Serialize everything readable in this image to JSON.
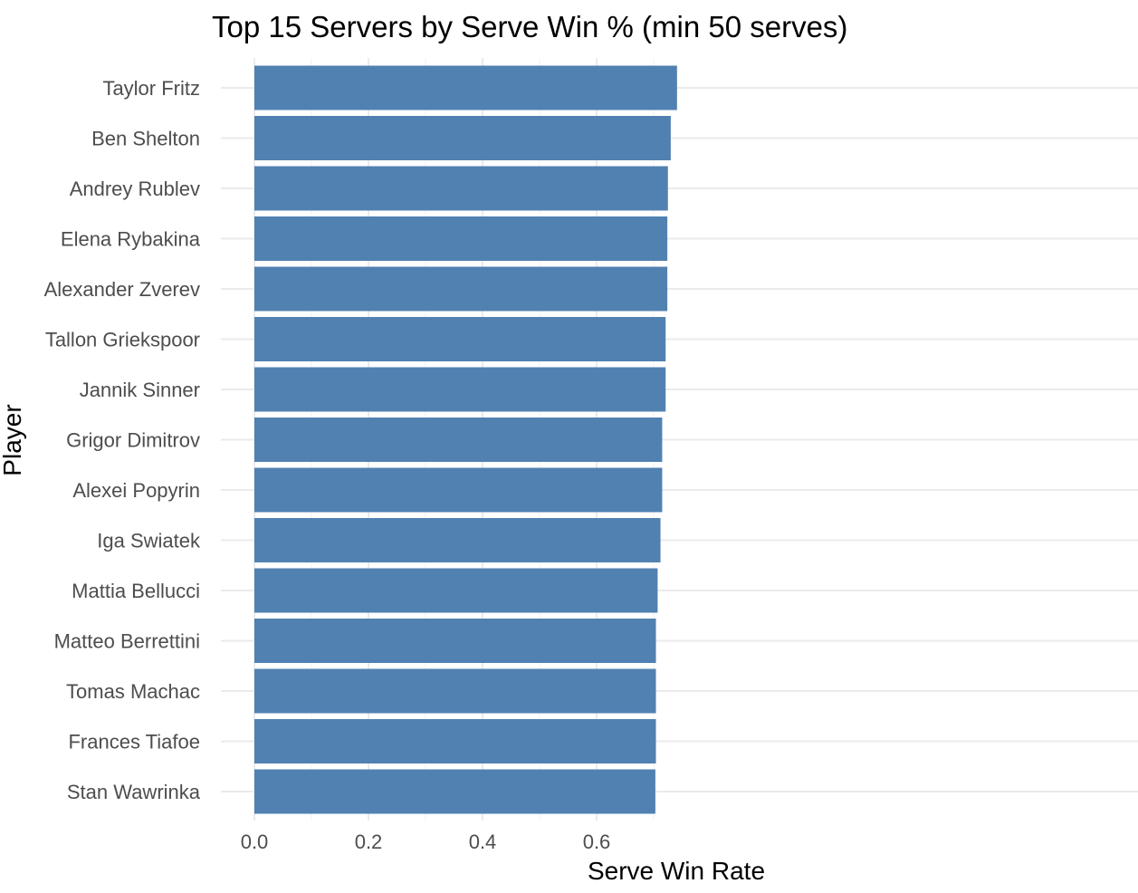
{
  "chart_data": {
    "type": "bar",
    "orientation": "horizontal",
    "title": "Top 15 Servers by Serve Win % (min 50 serves)",
    "xlabel": "Serve Win Rate",
    "ylabel": "Player",
    "xlim": [
      0,
      0.74
    ],
    "x_ticks": [
      0.0,
      0.2,
      0.4,
      0.6
    ],
    "x_tick_labels": [
      "0.0",
      "0.2",
      "0.4",
      "0.6"
    ],
    "grid": true,
    "bar_color": "#5181b1",
    "categories": [
      "Taylor Fritz",
      "Ben Shelton",
      "Andrey Rublev",
      "Elena Rybakina",
      "Alexander Zverev",
      "Tallon Griekspoor",
      "Jannik Sinner",
      "Grigor Dimitrov",
      "Alexei Popyrin",
      "Iga Swiatek",
      "Mattia Bellucci",
      "Matteo Berrettini",
      "Tomas Machac",
      "Frances Tiafoe",
      "Stan Wawrinka"
    ],
    "values": [
      0.741,
      0.73,
      0.725,
      0.724,
      0.724,
      0.721,
      0.721,
      0.715,
      0.715,
      0.712,
      0.707,
      0.704,
      0.704,
      0.704,
      0.703
    ]
  }
}
